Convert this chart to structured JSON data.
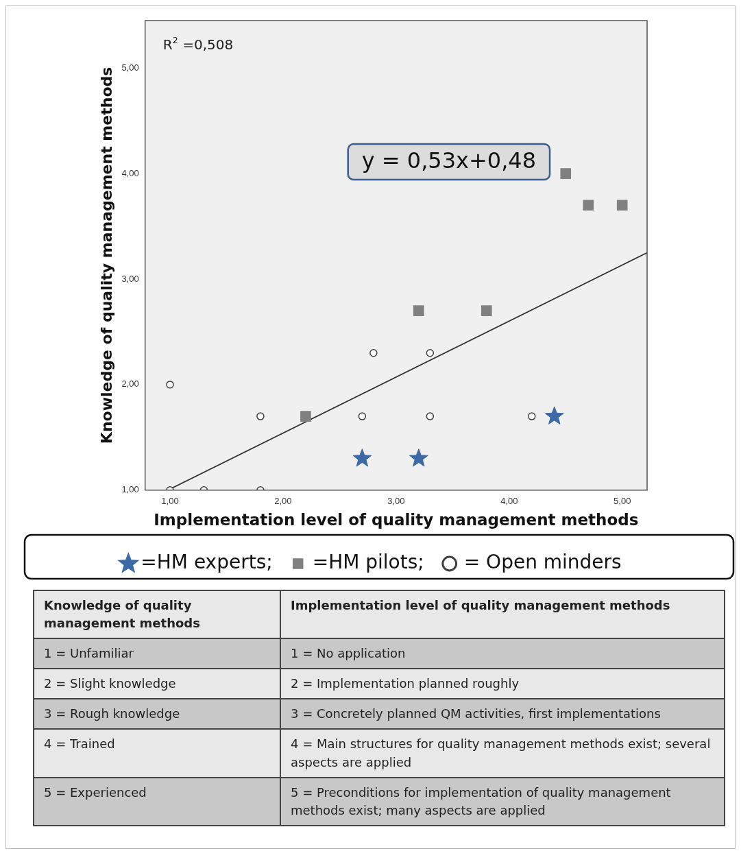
{
  "chart_data": [
    {
      "type": "scatter",
      "xlabel": "Implementation level of quality management methods",
      "ylabel": "Knowledge of quality management methods",
      "xlim": [
        0.78,
        5.22
      ],
      "xticks": [
        {
          "value": 1,
          "label": "1,00"
        },
        {
          "value": 2,
          "label": "2,00"
        },
        {
          "value": 3,
          "label": "3,00"
        },
        {
          "value": 4,
          "label": "4,00"
        },
        {
          "value": 5,
          "label": "5,00"
        }
      ],
      "ylim": [
        1,
        5.45
      ],
      "yticks": [
        {
          "value": 1,
          "label": "1,00"
        },
        {
          "value": 2,
          "label": "2,00"
        },
        {
          "value": 3,
          "label": "3,00"
        },
        {
          "value": 4,
          "label": "4,00"
        },
        {
          "value": 5,
          "label": "5,00"
        }
      ],
      "grid": false,
      "legend": "bottom",
      "series": [
        {
          "name": "=HM experts;",
          "color": "#3c6aa6",
          "marker": "star",
          "x": [
            2.7,
            3.2,
            4.4
          ],
          "values": [
            1.3,
            1.3,
            1.7
          ]
        },
        {
          "name": "=HM pilots;",
          "color": "#808080",
          "marker": "square",
          "x": [
            4.5,
            4.7,
            5.0,
            3.2,
            3.8,
            2.2
          ],
          "values": [
            4.0,
            3.7,
            3.7,
            2.7,
            2.7,
            1.7
          ]
        },
        {
          "name": "= Open minders",
          "color": "#404040",
          "marker": "circle",
          "x": [
            1.0,
            1.8,
            1.0,
            1.3,
            1.8,
            2.8,
            3.3,
            2.7,
            3.3,
            4.2
          ],
          "values": [
            2.0,
            1.7,
            1.0,
            1.0,
            1.0,
            2.3,
            2.3,
            1.7,
            1.7,
            1.7
          ]
        },
        {
          "type": "line",
          "color": "#333333",
          "marker": "none",
          "x": [
            1.0,
            5.22
          ],
          "values": [
            1.01,
            3.25
          ]
        }
      ],
      "annotations": [
        "R$^{2}$ =0,508",
        "y = 0,53x+0,48"
      ]
    },
    {
      "type": "other",
      "annotations": [
        "Knowledge of quality management methods",
        "Implementation level of quality management methods",
        "1 = Unfamiliar",
        "1 = No application",
        "2 = Slight knowledge",
        "2 = Implementation planned roughly",
        "3 = Rough knowledge",
        "3 = Concretely planned QM activities, first implementations",
        "4 = Trained",
        "4 = Main structures for quality management methods exist; several aspects are applied",
        "5 = Experienced",
        "5 = Preconditions for implementation of quality management methods exist; many aspects are applied"
      ]
    }
  ]
}
